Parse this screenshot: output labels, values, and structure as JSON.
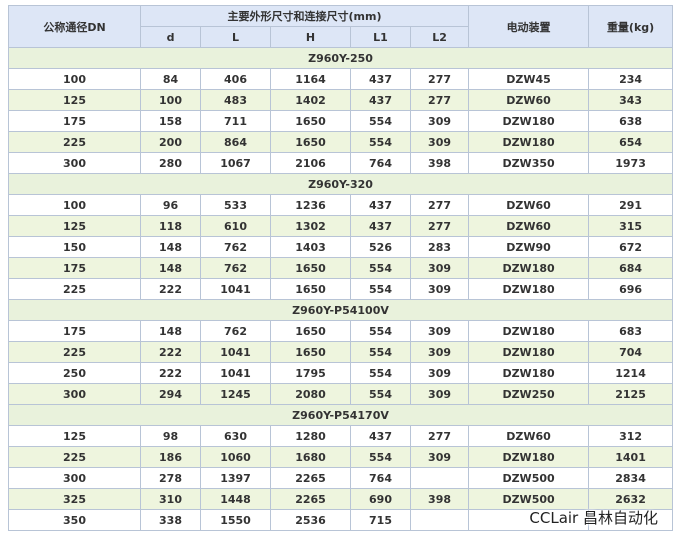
{
  "header": {
    "dn": "公称通径DN",
    "dims": "主要外形尺寸和连接尺寸(mm)",
    "actuator": "电动装置",
    "weight": "重量(kg)",
    "sub": [
      "d",
      "L",
      "H",
      "L1",
      "L2"
    ]
  },
  "groups": [
    {
      "title": "Z960Y-250",
      "rows": [
        [
          100,
          84,
          406,
          1164,
          437,
          277,
          "DZW45",
          234
        ],
        [
          125,
          100,
          483,
          1402,
          437,
          277,
          "DZW60",
          343
        ],
        [
          175,
          158,
          711,
          1650,
          554,
          309,
          "DZW180",
          638
        ],
        [
          225,
          200,
          864,
          1650,
          554,
          309,
          "DZW180",
          654
        ],
        [
          300,
          280,
          1067,
          2106,
          764,
          398,
          "DZW350",
          1973
        ]
      ]
    },
    {
      "title": "Z960Y-320",
      "rows": [
        [
          100,
          96,
          533,
          1236,
          437,
          277,
          "DZW60",
          291
        ],
        [
          125,
          118,
          610,
          1302,
          437,
          277,
          "DZW60",
          315
        ],
        [
          150,
          148,
          762,
          1403,
          526,
          283,
          "DZW90",
          672
        ],
        [
          175,
          148,
          762,
          1650,
          554,
          309,
          "DZW180",
          684
        ],
        [
          225,
          222,
          1041,
          1650,
          554,
          309,
          "DZW180",
          696
        ]
      ]
    },
    {
      "title": "Z960Y-P54100V",
      "rows": [
        [
          175,
          148,
          762,
          1650,
          554,
          309,
          "DZW180",
          683
        ],
        [
          225,
          222,
          1041,
          1650,
          554,
          309,
          "DZW180",
          704
        ],
        [
          250,
          222,
          1041,
          1795,
          554,
          309,
          "DZW180",
          1214
        ],
        [
          300,
          294,
          1245,
          2080,
          554,
          309,
          "DZW250",
          2125
        ]
      ]
    },
    {
      "title": "Z960Y-P54170V",
      "rows": [
        [
          125,
          98,
          630,
          1280,
          437,
          277,
          "DZW60",
          312
        ],
        [
          225,
          186,
          1060,
          1680,
          554,
          309,
          "DZW180",
          1401
        ],
        [
          300,
          278,
          1397,
          2265,
          764,
          null,
          "DZW500",
          2834
        ],
        [
          325,
          310,
          1448,
          2265,
          690,
          398,
          "DZW500",
          2632
        ],
        [
          350,
          338,
          1550,
          2536,
          715,
          null,
          null,
          null
        ]
      ]
    }
  ],
  "watermark": "CCLair 昌林自动化"
}
